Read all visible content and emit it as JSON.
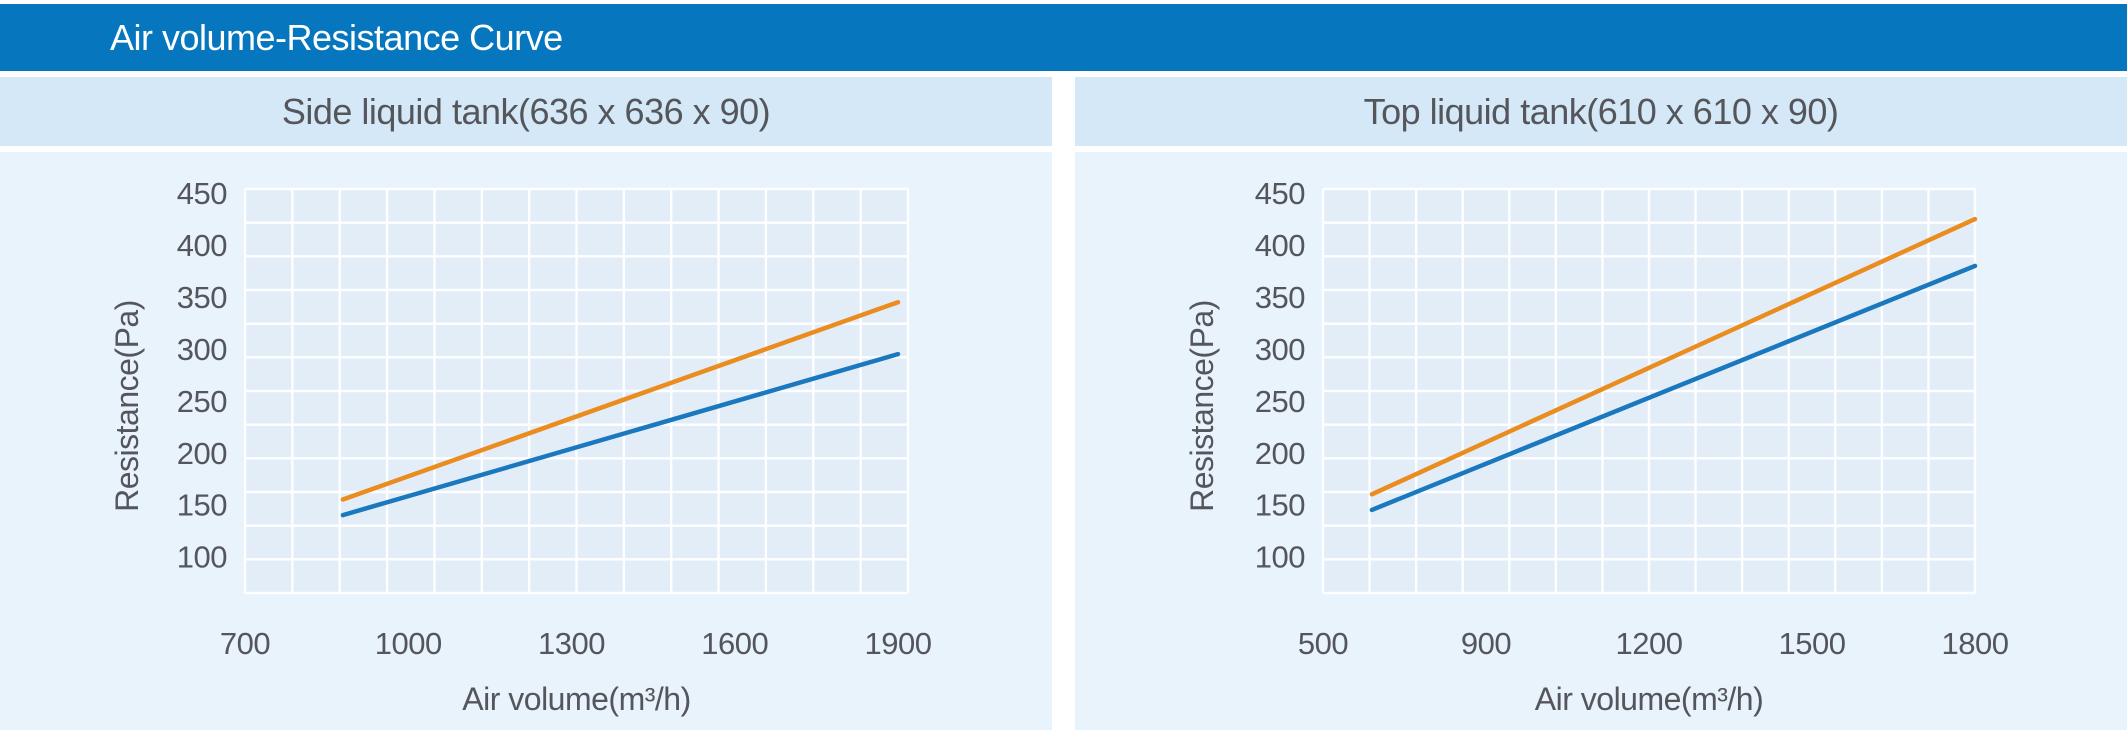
{
  "title_bar": {
    "label": "Air volume-Resistance Curve"
  },
  "colors": {
    "page_bg": "#FFFFFF",
    "title_bar_bg": "#0677BE",
    "title_text": "#FFFFFF",
    "panel_band_bg": "#D5E8F7",
    "chart_bg": "#E9F3FB",
    "plot_bg": "#E2EDF8",
    "grid_line": "#FFFFFF",
    "text": "#54565B"
  },
  "chart_data": [
    {
      "type": "line",
      "title": "Side liquid tank(636 x 636 x 90)",
      "xlabel": "Air volume(m³/h)",
      "ylabel": "Resistance(Pa)",
      "x_ticks": [
        700,
        1000,
        1300,
        1600,
        1900
      ],
      "y_ticks": [
        100,
        150,
        200,
        250,
        300,
        350,
        400,
        450
      ],
      "xlim": [
        700,
        1915
      ],
      "ylim": [
        65,
        454
      ],
      "grid": "fine white mesh, no legend",
      "series": [
        {
          "id": "orange-line",
          "color": "#EA8C1E",
          "points": [
            [
              880,
              155
            ],
            [
              1900,
              345
            ]
          ]
        },
        {
          "id": "blue-line",
          "color": "#1A78BE",
          "points": [
            [
              880,
              140
            ],
            [
              1900,
              295
            ]
          ]
        }
      ]
    },
    {
      "type": "line",
      "title": "Top liquid tank(610 x 610 x 90)",
      "xlabel": "Air volume(m³/h)",
      "ylabel": "Resistance(Pa)",
      "x_ticks": [
        500,
        900,
        1200,
        1500,
        1800
      ],
      "y_ticks": [
        100,
        150,
        200,
        250,
        300,
        350,
        400,
        450
      ],
      "xlim": [
        500,
        1800
      ],
      "ylim": [
        65,
        454
      ],
      "grid": "fine white mesh, no legend",
      "series": [
        {
          "id": "orange-line",
          "color": "#EA8C1E",
          "points": [
            [
              620,
              160
            ],
            [
              1800,
              425
            ]
          ]
        },
        {
          "id": "blue-line",
          "color": "#1A78BE",
          "points": [
            [
              620,
              145
            ],
            [
              1800,
              380
            ]
          ]
        }
      ]
    }
  ]
}
